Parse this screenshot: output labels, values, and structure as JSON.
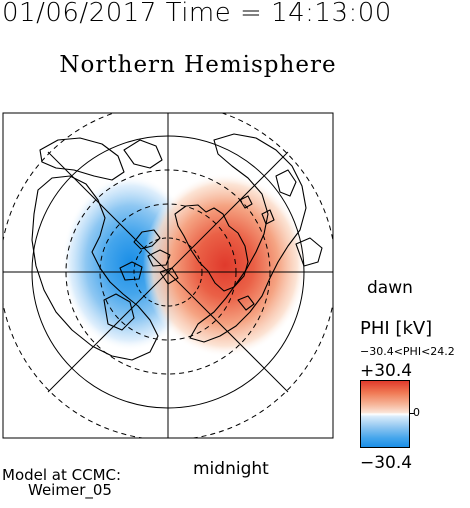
{
  "header": {
    "timestamp": "01/06/2017 Time = 14:13:00",
    "title": "Northern Hemisphere"
  },
  "map": {
    "dawn_label": "dawn",
    "midnight_label": "midnight",
    "positive_potential_color": "#e6452f",
    "negative_potential_color": "#1f8fe8"
  },
  "legend": {
    "title": "PHI [kV]",
    "range_text": "−30.4<PHI<24.2",
    "max_label": "+30.4",
    "min_label": "−30.4",
    "zero_label": "0"
  },
  "credit": {
    "line1": "Model at CCMC:",
    "line2": "Weimer_05"
  }
}
